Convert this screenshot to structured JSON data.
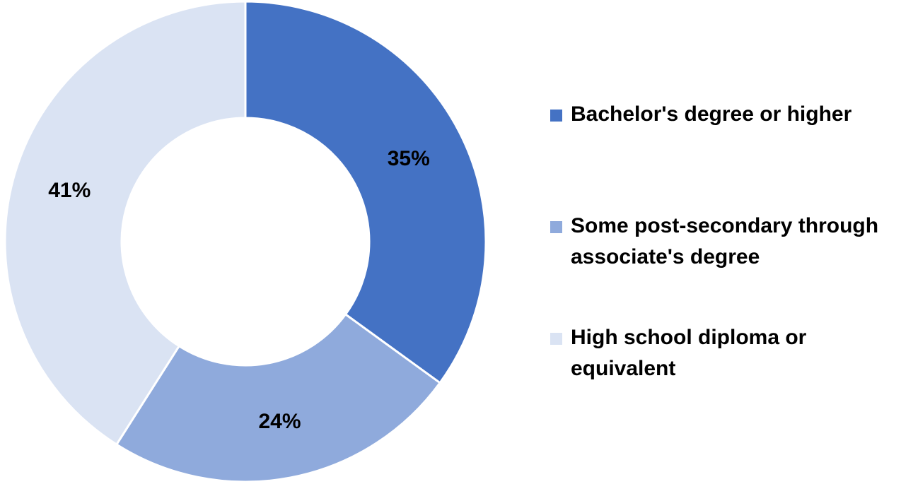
{
  "chart_data": {
    "type": "pie",
    "donut": true,
    "legend_position": "right",
    "slices": [
      {
        "label": "Bachelor's degree or higher",
        "value": 35,
        "value_label": "35%",
        "color": "#4472c4"
      },
      {
        "label": "Some post-secondary through associate's degree",
        "value": 24,
        "value_label": "24%",
        "color": "#8faadc"
      },
      {
        "label": "High school diploma or equivalent",
        "value": 41,
        "value_label": "41%",
        "color": "#dae3f3"
      }
    ]
  }
}
